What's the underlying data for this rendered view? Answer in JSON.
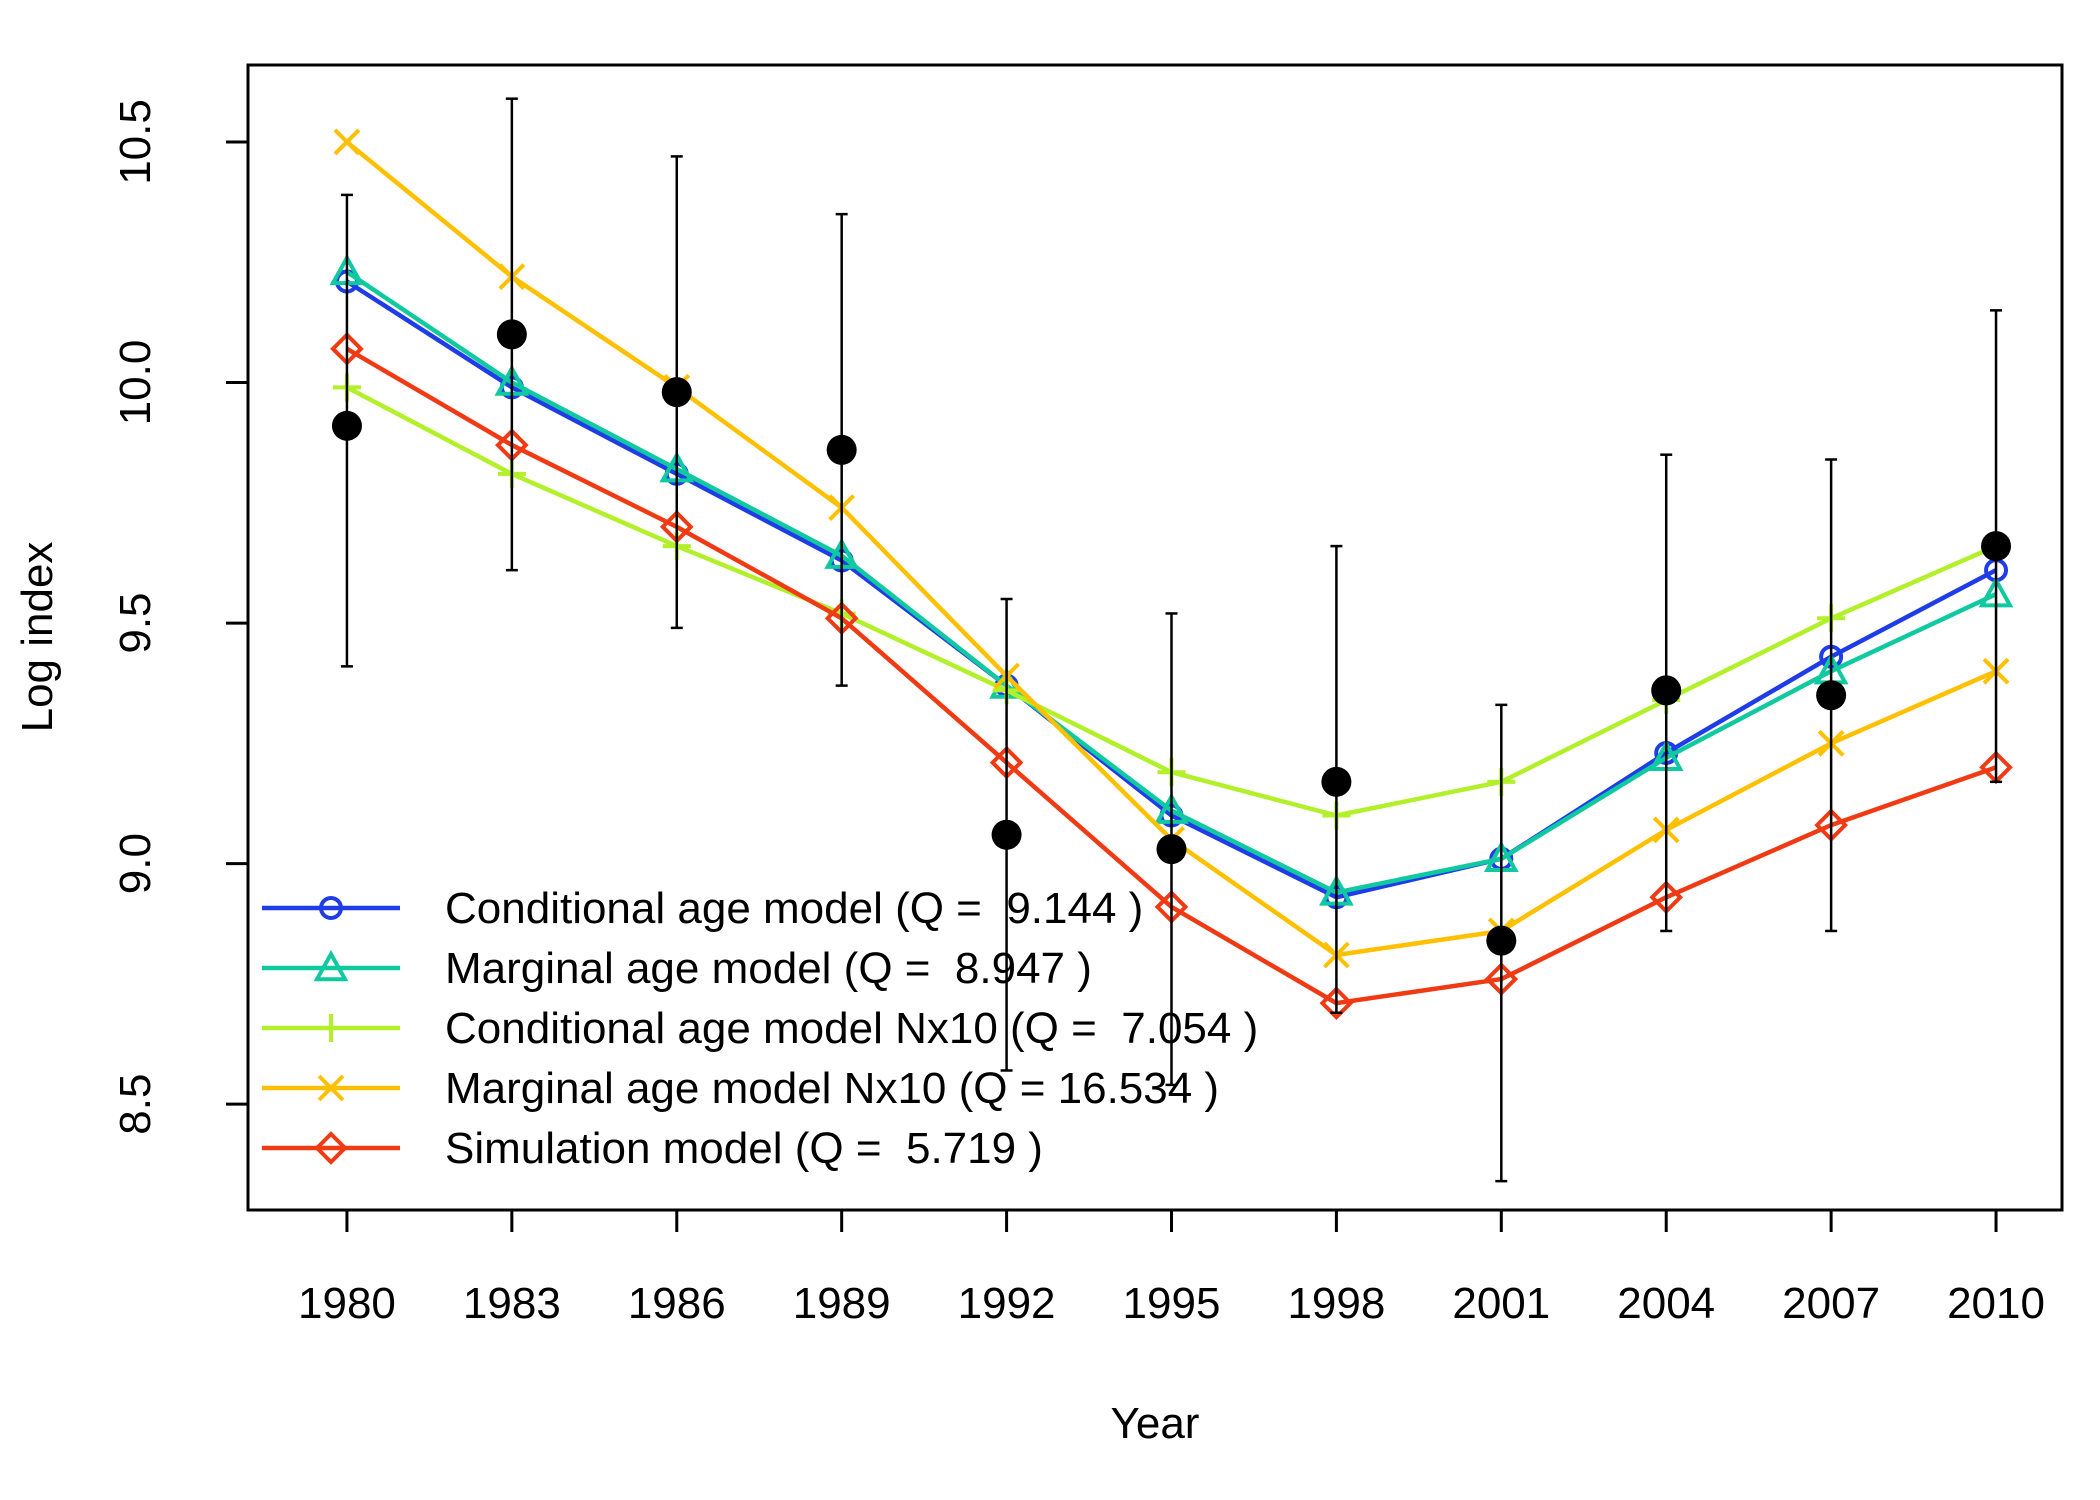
{
  "chart_data": {
    "type": "line",
    "title": "",
    "xlabel": "Year",
    "ylabel": "Log index",
    "xlim": [
      1978.2,
      2011.2
    ],
    "ylim": [
      8.28,
      10.66
    ],
    "x_ticks": [
      1980,
      1983,
      1986,
      1989,
      1992,
      1995,
      1998,
      2001,
      2004,
      2007,
      2010
    ],
    "y_ticks": [
      8.5,
      9.0,
      9.5,
      10.0,
      10.5
    ],
    "y_tick_labels": [
      "8.5",
      "9.0",
      "9.5",
      "10.0",
      "10.5"
    ],
    "grid": false,
    "legend_position": "bottom-left",
    "observed": {
      "color": "#000000",
      "x": [
        1980,
        1983,
        1986,
        1989,
        1992,
        1995,
        1998,
        2001,
        2004,
        2007,
        2010
      ],
      "y": [
        9.91,
        10.1,
        9.98,
        9.86,
        9.06,
        9.03,
        9.17,
        8.84,
        9.36,
        9.35,
        9.66
      ],
      "upper": [
        10.39,
        10.59,
        10.47,
        10.35,
        9.55,
        9.52,
        9.66,
        9.33,
        9.85,
        9.84,
        10.15
      ],
      "lower": [
        9.41,
        9.61,
        9.49,
        9.37,
        8.57,
        8.54,
        8.69,
        8.34,
        8.86,
        8.86,
        9.17
      ]
    },
    "series": [
      {
        "name": "Conditional age model (Q =  9.144 )",
        "color": "#1E3DE8",
        "marker": "circle",
        "x": [
          1980,
          1983,
          1986,
          1989,
          1992,
          1995,
          1998,
          2001,
          2004,
          2007,
          2010
        ],
        "y": [
          10.21,
          9.99,
          9.81,
          9.63,
          9.37,
          9.1,
          8.93,
          9.01,
          9.23,
          9.43,
          9.61
        ]
      },
      {
        "name": "Marginal age model (Q =  8.947 )",
        "color": "#10C9A0",
        "marker": "triangle",
        "x": [
          1980,
          1983,
          1986,
          1989,
          1992,
          1995,
          1998,
          2001,
          2004,
          2007,
          2010
        ],
        "y": [
          10.23,
          10.0,
          9.82,
          9.64,
          9.37,
          9.11,
          8.94,
          9.01,
          9.22,
          9.4,
          9.56
        ]
      },
      {
        "name": "Conditional age model Nx10 (Q =  7.054 )",
        "color": "#B2F02A",
        "marker": "plus",
        "x": [
          1980,
          1983,
          1986,
          1989,
          1992,
          1995,
          1998,
          2001,
          2004,
          2007,
          2010
        ],
        "y": [
          9.99,
          9.81,
          9.66,
          9.52,
          9.36,
          9.19,
          9.1,
          9.17,
          9.34,
          9.51,
          9.66
        ]
      },
      {
        "name": "Marginal age model Nx10 (Q = 16.534 )",
        "color": "#FFC000",
        "marker": "x",
        "x": [
          1980,
          1983,
          1986,
          1989,
          1992,
          1995,
          1998,
          2001,
          2004,
          2007,
          2010
        ],
        "y": [
          10.5,
          10.22,
          9.99,
          9.74,
          9.39,
          9.05,
          8.81,
          8.86,
          9.07,
          9.25,
          9.4
        ]
      },
      {
        "name": "Simulation model (Q =  5.719 )",
        "color": "#F03A14",
        "marker": "diamond",
        "x": [
          1980,
          1983,
          1986,
          1989,
          1992,
          1995,
          1998,
          2001,
          2004,
          2007,
          2010
        ],
        "y": [
          10.07,
          9.87,
          9.7,
          9.51,
          9.21,
          8.91,
          8.71,
          8.76,
          8.93,
          9.08,
          9.2
        ]
      }
    ]
  }
}
